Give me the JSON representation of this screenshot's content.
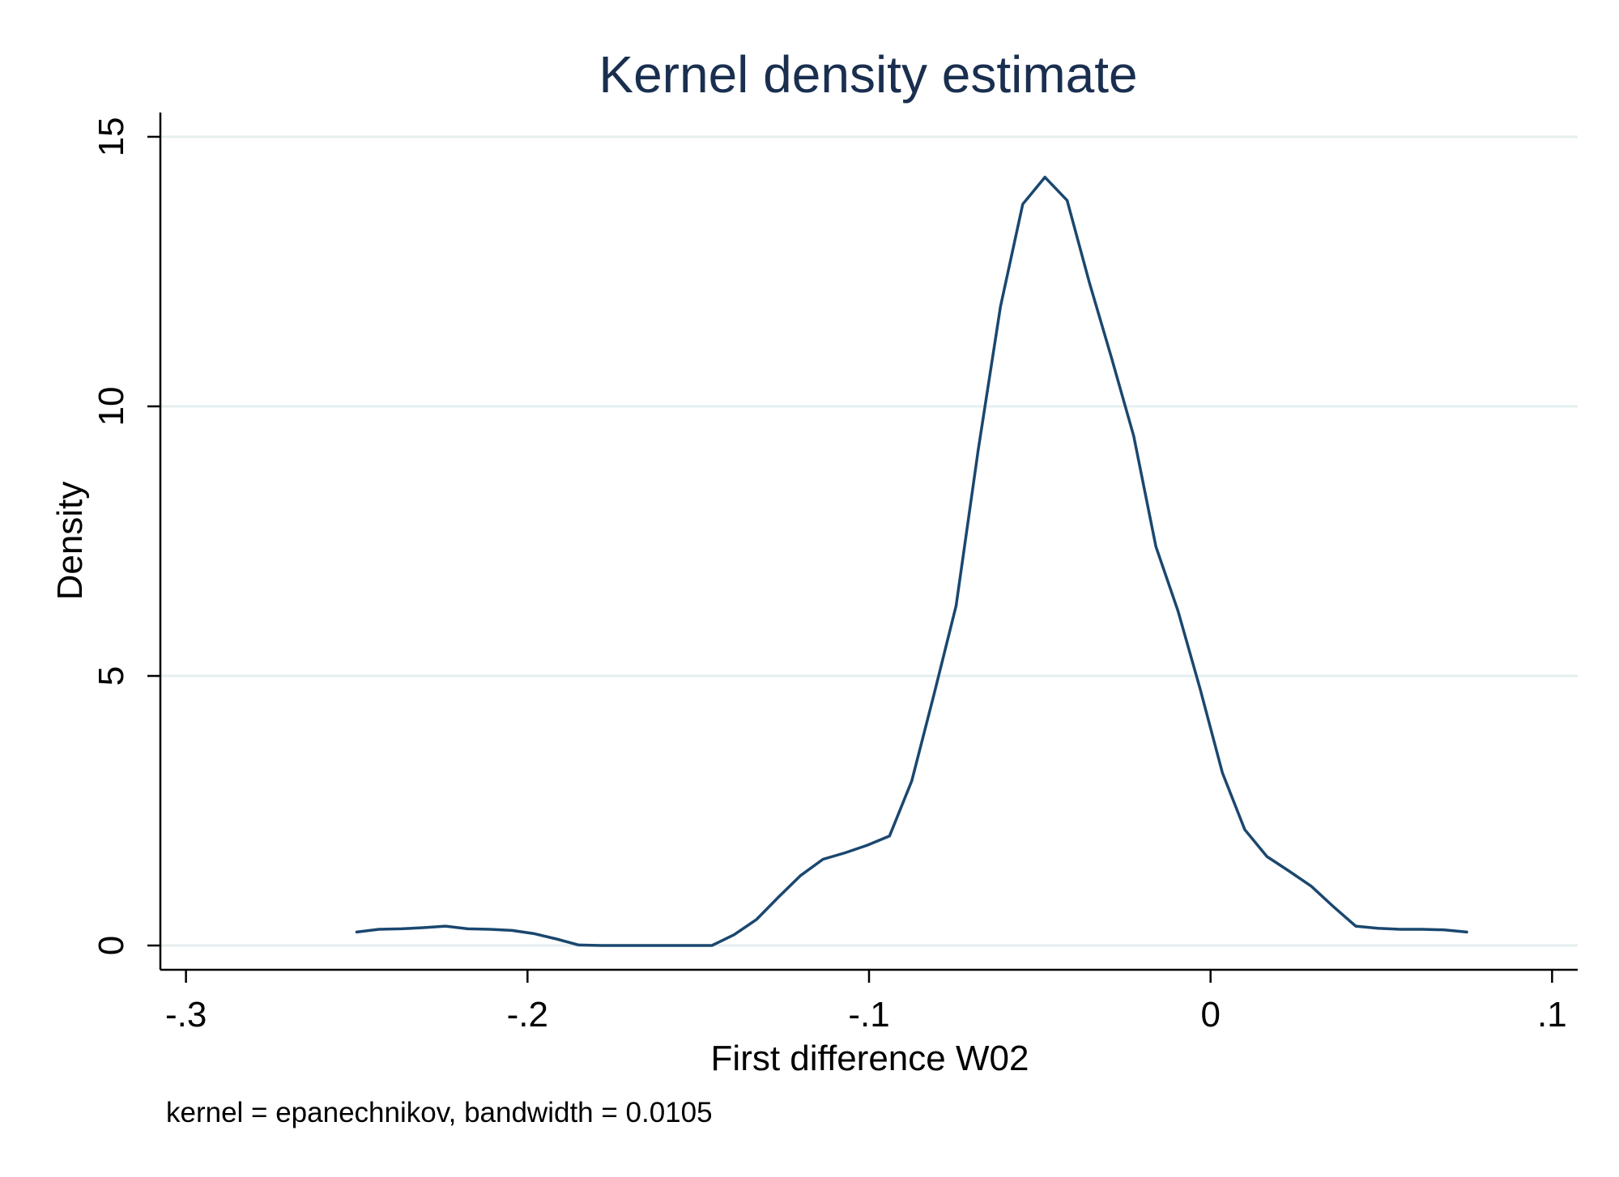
{
  "chart_data": {
    "type": "line",
    "title": "Kernel density estimate",
    "xlabel": "First difference W02",
    "ylabel": "Density",
    "note": "kernel = epanechnikov, bandwidth = 0.0105",
    "xlim": [
      -0.3075,
      0.1075
    ],
    "ylim": [
      -0.45,
      15.45
    ],
    "x_ticks": [
      -0.3,
      -0.2,
      -0.1,
      0,
      0.1
    ],
    "x_tick_labels": [
      "-.3",
      "-.2",
      "-.1",
      "0",
      ".1"
    ],
    "y_ticks": [
      0,
      5,
      10,
      15
    ],
    "y_tick_labels": [
      "0",
      "5",
      "10",
      "15"
    ],
    "grid": true,
    "line_color": "#1a476f",
    "title_color": "#1a2f4f",
    "series": [
      {
        "x": [
          -0.25,
          -0.2435,
          -0.237,
          -0.2305,
          -0.224,
          -0.2175,
          -0.211,
          -0.2045,
          -0.198,
          -0.1915,
          -0.185,
          -0.1785,
          -0.172,
          -0.1655,
          -0.159,
          -0.1525,
          -0.146,
          -0.1395,
          -0.133,
          -0.1265,
          -0.12,
          -0.1135,
          -0.107,
          -0.1005,
          -0.094,
          -0.0875,
          -0.081,
          -0.0745,
          -0.068,
          -0.0615,
          -0.055,
          -0.0485,
          -0.042,
          -0.0355,
          -0.029,
          -0.0225,
          -0.016,
          -0.0095,
          -0.003,
          0.0035,
          0.01,
          0.0165,
          0.023,
          0.0295,
          0.036,
          0.0425,
          0.049,
          0.0555,
          0.062,
          0.0685,
          0.075
        ],
        "y": [
          0.25,
          0.3,
          0.31,
          0.33,
          0.36,
          0.31,
          0.3,
          0.28,
          0.22,
          0.12,
          0.01,
          0.0,
          0.0,
          0.0,
          0.0,
          0.0,
          0.0,
          0.2,
          0.48,
          0.9,
          1.3,
          1.6,
          1.72,
          1.86,
          2.03,
          3.05,
          4.65,
          6.3,
          9.2,
          11.85,
          13.75,
          14.25,
          13.82,
          12.3,
          10.9,
          9.45,
          7.4,
          6.2,
          4.75,
          3.2,
          2.15,
          1.65,
          1.38,
          1.1,
          0.72,
          0.36,
          0.32,
          0.3,
          0.3,
          0.29,
          0.25
        ]
      }
    ]
  }
}
